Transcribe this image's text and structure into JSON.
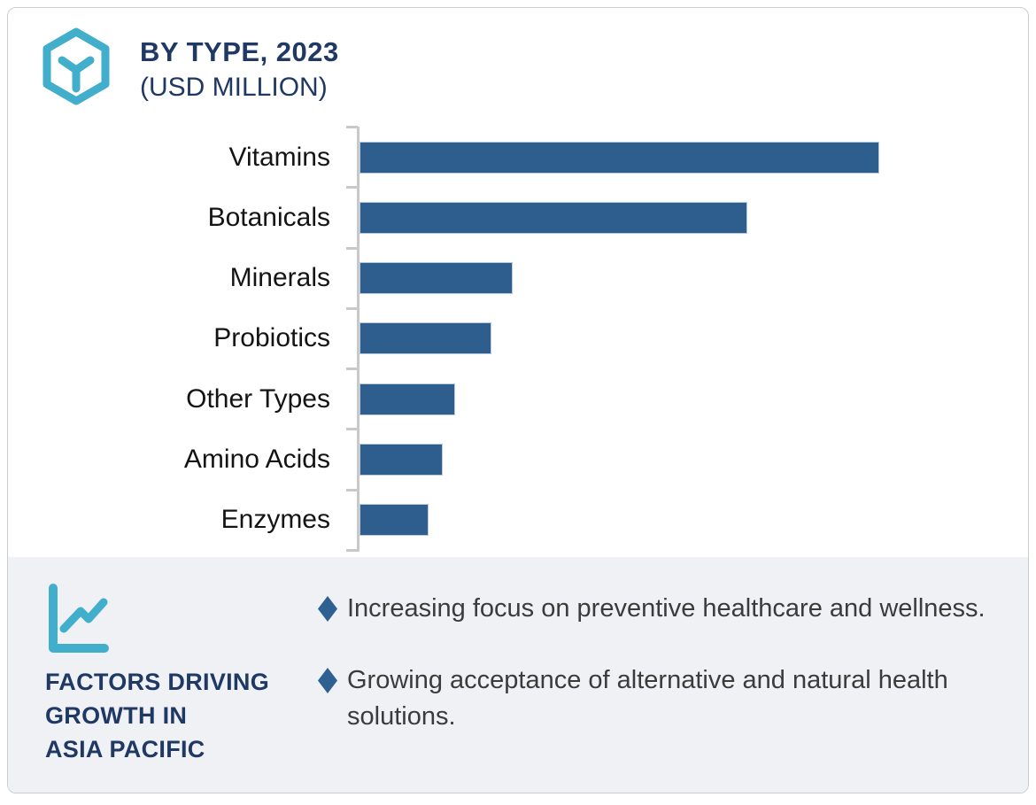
{
  "header": {
    "title": "BY TYPE, 2023",
    "subtitle": "(USD MILLION)",
    "icon": "hexagon-cube-icon"
  },
  "chart_data": {
    "type": "bar",
    "orientation": "horizontal",
    "title": "BY TYPE, 2023 (USD MILLION)",
    "categories": [
      "Vitamins",
      "Botanicals",
      "Minerals",
      "Probiotics",
      "Other Types",
      "Amino Acids",
      "Enzymes"
    ],
    "values": [
      100,
      74.6,
      29.5,
      25.4,
      18.4,
      16.0,
      13.3
    ],
    "value_note": "numeric axis values are not labeled in the image; values are estimated bar lengths as percent of the largest bar (Vitamins = 100)",
    "xlabel": "",
    "ylabel": "",
    "grid": false,
    "legend": false,
    "bar_color": "#2d5e8d",
    "bar_border_color": "#b7c9db",
    "axis_color": "#c9c9c9"
  },
  "factors_panel": {
    "icon": "line-chart-icon",
    "heading": "FACTORS DRIVING\nGROWTH IN\nASIA PACIFIC",
    "bullets": [
      "Increasing focus on preventive healthcare and wellness.",
      "Growing acceptance of alternative and natural health solutions."
    ]
  },
  "colors": {
    "navy": "#1f3864",
    "teal": "#41aecb",
    "bar": "#2d5e8d",
    "diamond": "#2e6091",
    "panel_bg": "#eff1f5",
    "bullet_text": "#3b3b3b",
    "axis_gray": "#c9c9c9"
  }
}
